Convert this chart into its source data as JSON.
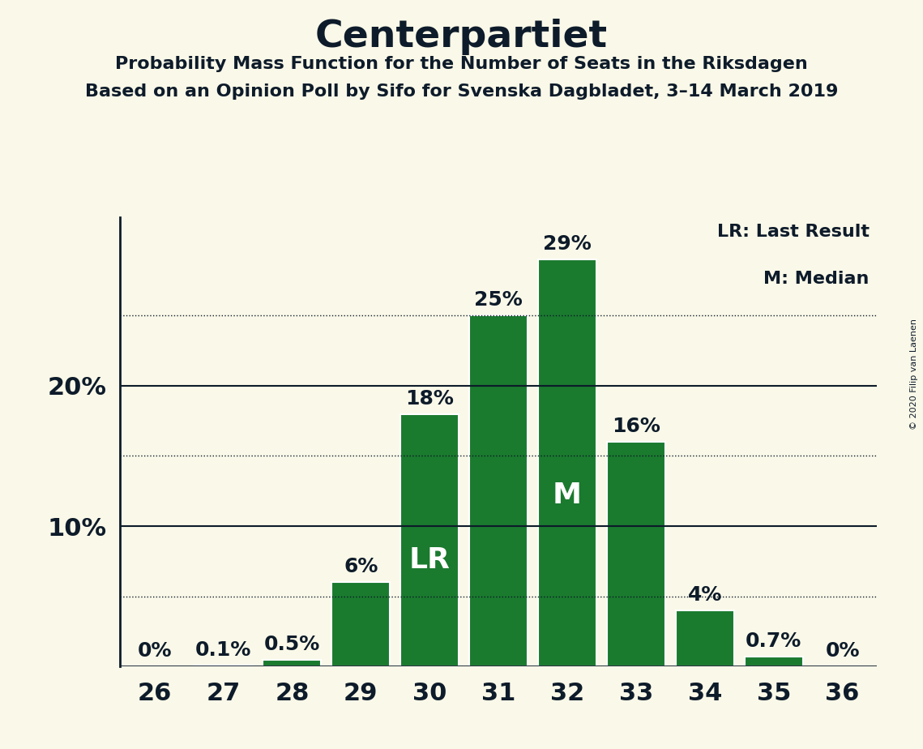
{
  "title": "Centerpartiet",
  "subtitle1": "Probability Mass Function for the Number of Seats in the Riksdagen",
  "subtitle2": "Based on an Opinion Poll by Sifo for Svenska Dagbladet, 3–14 March 2019",
  "copyright": "© 2020 Filip van Laenen",
  "categories": [
    26,
    27,
    28,
    29,
    30,
    31,
    32,
    33,
    34,
    35,
    36
  ],
  "values": [
    0.0,
    0.1,
    0.5,
    6.0,
    18.0,
    25.0,
    29.0,
    16.0,
    4.0,
    0.7,
    0.0
  ],
  "bar_labels": [
    "0%",
    "0.1%",
    "0.5%",
    "6%",
    "18%",
    "25%",
    "29%",
    "16%",
    "4%",
    "0.7%",
    "0%"
  ],
  "bar_color": "#1a7a2e",
  "bar_edge_color": "#ffffff",
  "background_color": "#faf8e8",
  "title_color": "#0d1b2a",
  "label_color": "#0d1b2a",
  "lr_bar_index": 4,
  "lr_label": "LR",
  "median_bar_index": 6,
  "median_label": "M",
  "solid_gridlines": [
    10,
    20
  ],
  "dotted_gridlines": [
    5,
    15,
    25
  ],
  "yticks": [
    10,
    20
  ],
  "ylim": [
    0,
    32
  ],
  "legend_lr": "LR: Last Result",
  "legend_m": "M: Median",
  "title_fontsize": 34,
  "subtitle_fontsize": 16,
  "ylabel_fontsize": 22,
  "xlabel_fontsize": 22,
  "bar_label_fontsize": 18,
  "inbar_label_fontsize": 26
}
